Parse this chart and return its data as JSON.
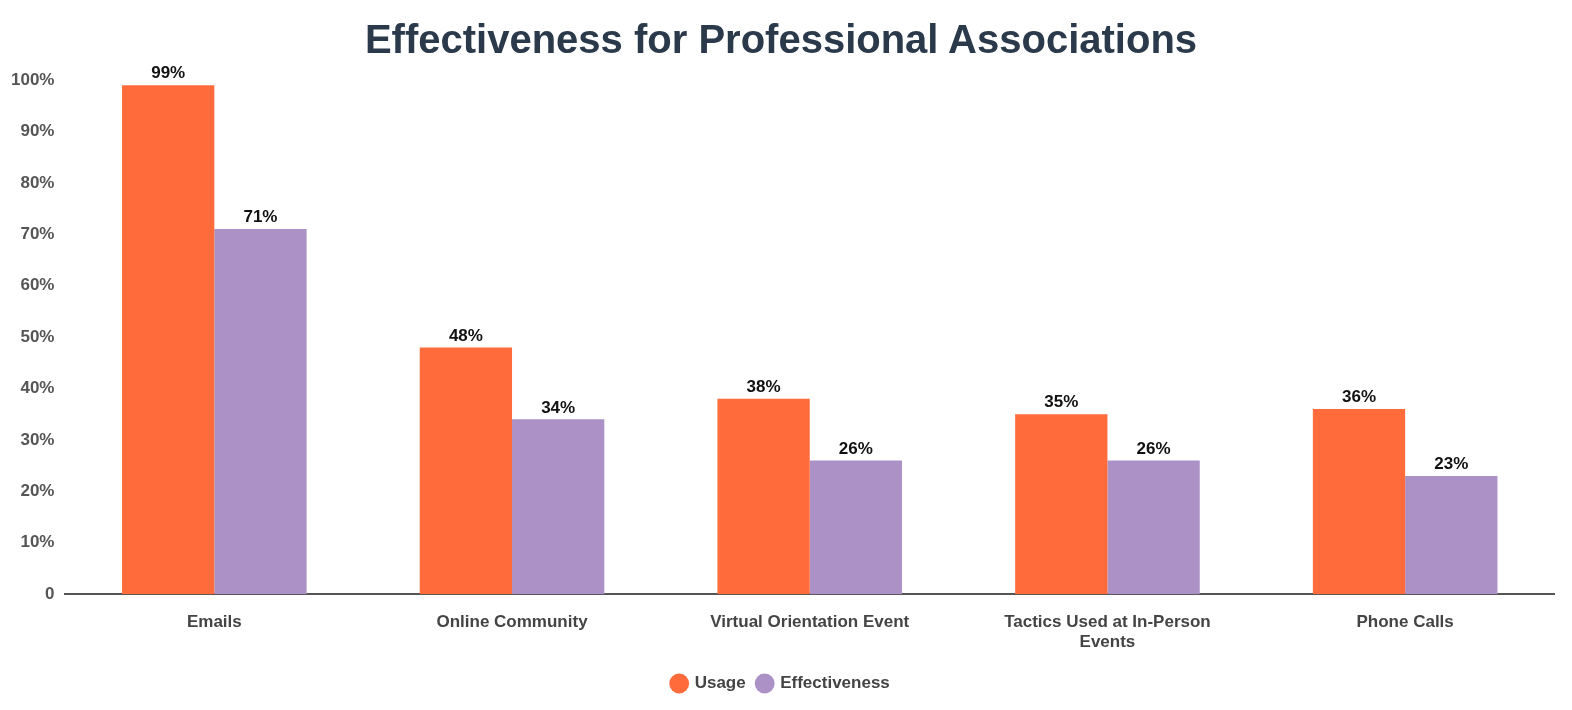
{
  "chart_data": {
    "type": "bar",
    "title": "Effectiveness for Professional Associations",
    "categories": [
      "Emails",
      "Online Community",
      "Virtual Orientation Event",
      "Tactics Used at In-Person Events",
      "Phone Calls"
    ],
    "series": [
      {
        "name": "Usage",
        "color": "#ff6b3a",
        "values": [
          99,
          48,
          38,
          35,
          36
        ],
        "value_labels": [
          "99%",
          "48%",
          "38%",
          "35%",
          "36%"
        ]
      },
      {
        "name": "Effectiveness",
        "color": "#ab91c5",
        "values": [
          71,
          34,
          26,
          26,
          23
        ],
        "value_labels": [
          "71%",
          "34%",
          "26%",
          "26%",
          "23%"
        ]
      }
    ],
    "ylim": [
      0,
      100
    ],
    "yticks": [
      {
        "value": 0,
        "label": "0"
      },
      {
        "value": 10,
        "label": "10%"
      },
      {
        "value": 20,
        "label": "20%"
      },
      {
        "value": 30,
        "label": "30%"
      },
      {
        "value": 40,
        "label": "40%"
      },
      {
        "value": 50,
        "label": "50%"
      },
      {
        "value": 60,
        "label": "60%"
      },
      {
        "value": 70,
        "label": "70%"
      },
      {
        "value": 80,
        "label": "80%"
      },
      {
        "value": 90,
        "label": "90%"
      },
      {
        "value": 100,
        "label": "100%"
      }
    ],
    "legend": "bottom"
  }
}
